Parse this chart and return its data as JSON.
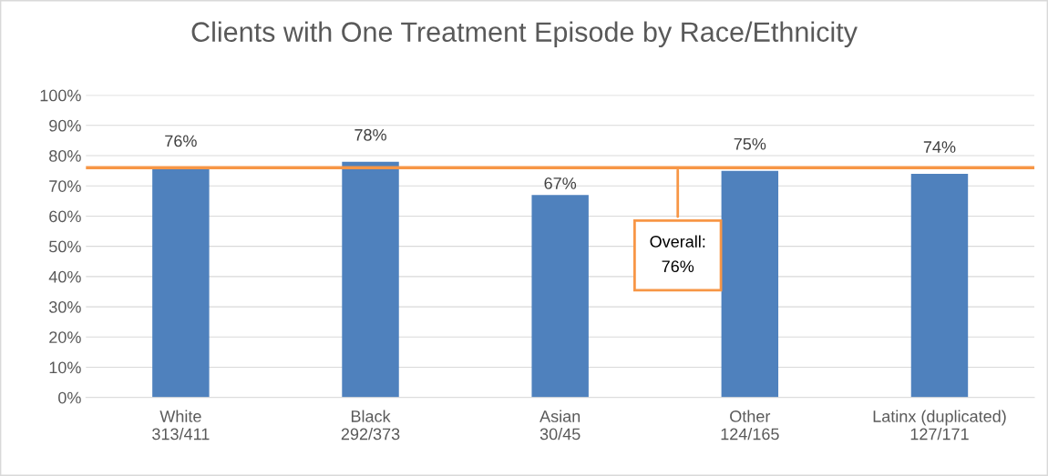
{
  "chart_data": {
    "type": "bar",
    "title": "Clients with One Treatment Episode by Race/Ethnicity",
    "categories": [
      "White\n313/411",
      "Black\n292/373",
      "Asian\n30/45",
      "Other\n124/165",
      "Latinx (duplicated)\n127/171"
    ],
    "values": [
      76,
      78,
      67,
      75,
      74
    ],
    "value_labels": [
      "76%",
      "78%",
      "67%",
      "75%",
      "74%"
    ],
    "color": "#4f81bd",
    "ylim": [
      0,
      100
    ],
    "yticks": [
      {
        "value": 0,
        "label": "0%"
      },
      {
        "value": 10,
        "label": "10%"
      },
      {
        "value": 20,
        "label": "20%"
      },
      {
        "value": 30,
        "label": "30%"
      },
      {
        "value": 40,
        "label": "40%"
      },
      {
        "value": 50,
        "label": "50%"
      },
      {
        "value": 60,
        "label": "60%"
      },
      {
        "value": 70,
        "label": "70%"
      },
      {
        "value": 80,
        "label": "80%"
      },
      {
        "value": 90,
        "label": "90%"
      },
      {
        "value": 100,
        "label": "100%"
      }
    ],
    "grid": "y",
    "legend": false,
    "ref_lines": [
      {
        "axis": "y",
        "value": 76,
        "label": "Overall:\n76%",
        "color": "#f79646"
      }
    ]
  }
}
